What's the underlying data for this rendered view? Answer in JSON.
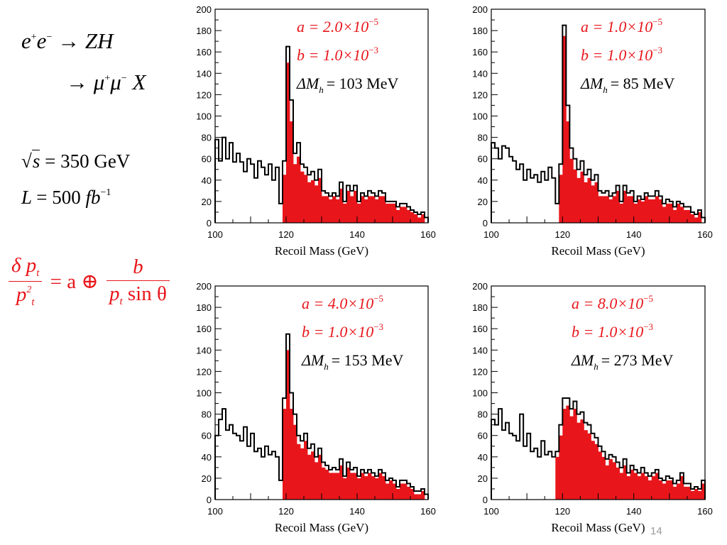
{
  "labels": {
    "process_line1": {
      "e": "e",
      "plus": "+",
      "minus": "−",
      "arrow": "→",
      "zh": "ZH"
    },
    "process_line2": {
      "arrow": "→",
      "mu": "μ",
      "plus": "+",
      "minus": "−",
      "x": "X"
    },
    "energy": {
      "sqrt": "√",
      "s": "s",
      "value": "= 350 GeV"
    },
    "luminosity": {
      "L": "L",
      "value": "= 500 ",
      "unit": "fb",
      "exp": "−1"
    },
    "resolution": {
      "delta": "δ",
      "p": "p",
      "t": "t",
      "sq": "2",
      "eq": "= a ⊕",
      "b": "b",
      "sin": "sin θ"
    },
    "page_number": "14"
  },
  "chart_data": [
    {
      "type": "bar",
      "xlabel": "Recoil Mass (GeV)",
      "xlim": [
        100,
        160
      ],
      "ylim": [
        0,
        200
      ],
      "xticks": [
        100,
        120,
        140,
        160
      ],
      "yticks": [
        0,
        20,
        40,
        60,
        80,
        100,
        120,
        140,
        160,
        180,
        200
      ],
      "annotations": [
        {
          "eq": "a = 2.0×10",
          "exp": "−5",
          "color": "#e8161b"
        },
        {
          "eq": "b = 1.0×10",
          "exp": "−3",
          "color": "#e8161b"
        },
        {
          "sym": "ΔM",
          "sub": "h",
          "eq": "= 103 MeV",
          "color": "#000000"
        }
      ],
      "series": [
        {
          "bin_width": 1,
          "color": "#000000",
          "x_start": 100,
          "values": [
            78,
            58,
            80,
            60,
            75,
            57,
            65,
            57,
            48,
            60,
            55,
            42,
            58,
            52,
            45,
            55,
            40,
            52,
            18,
            58,
            165,
            115,
            65,
            75,
            55,
            52,
            45,
            48,
            40,
            50,
            30,
            28,
            25,
            28,
            25,
            38,
            20,
            35,
            30,
            35,
            20,
            28,
            25,
            30,
            28,
            25,
            30,
            28,
            20,
            20,
            20,
            15,
            18,
            18,
            15,
            12,
            10,
            8,
            10,
            5
          ]
        },
        {
          "bin_width": 1,
          "color": "#e8161b",
          "x_start": 100,
          "values": [
            0,
            0,
            0,
            0,
            0,
            0,
            0,
            0,
            0,
            0,
            0,
            0,
            0,
            0,
            0,
            0,
            0,
            0,
            0,
            45,
            150,
            95,
            55,
            62,
            48,
            45,
            38,
            40,
            35,
            42,
            25,
            25,
            22,
            25,
            22,
            32,
            18,
            30,
            25,
            30,
            18,
            25,
            22,
            25,
            25,
            22,
            25,
            25,
            18,
            18,
            18,
            12,
            15,
            15,
            12,
            10,
            8,
            5,
            8,
            0
          ]
        }
      ]
    },
    {
      "type": "bar",
      "xlabel": "Recoil Mass (GeV)",
      "xlim": [
        100,
        160
      ],
      "ylim": [
        0,
        200
      ],
      "xticks": [
        100,
        120,
        140,
        160
      ],
      "yticks": [
        0,
        20,
        40,
        60,
        80,
        100,
        120,
        140,
        160,
        180,
        200
      ],
      "annotations": [
        {
          "eq": "a = 1.0×10",
          "exp": "−5",
          "color": "#e8161b"
        },
        {
          "eq": "b = 1.0×10",
          "exp": "−3",
          "color": "#e8161b"
        },
        {
          "sym": "ΔM",
          "sub": "h",
          "eq": "= 85 MeV",
          "color": "#000000"
        }
      ],
      "series": [
        {
          "bin_width": 1,
          "color": "#000000",
          "x_start": 100,
          "values": [
            75,
            70,
            60,
            72,
            70,
            62,
            58,
            50,
            55,
            40,
            50,
            42,
            45,
            38,
            48,
            40,
            52,
            42,
            18,
            55,
            185,
            110,
            70,
            60,
            50,
            58,
            45,
            50,
            40,
            45,
            30,
            28,
            30,
            25,
            28,
            35,
            20,
            35,
            28,
            30,
            20,
            25,
            22,
            28,
            25,
            25,
            30,
            25,
            18,
            22,
            20,
            15,
            20,
            18,
            15,
            15,
            10,
            8,
            12,
            5
          ]
        },
        {
          "bin_width": 1,
          "color": "#e8161b",
          "x_start": 100,
          "values": [
            0,
            0,
            0,
            0,
            0,
            0,
            0,
            0,
            0,
            0,
            0,
            0,
            0,
            0,
            0,
            0,
            0,
            0,
            0,
            45,
            175,
            95,
            60,
            50,
            42,
            48,
            38,
            42,
            35,
            38,
            25,
            25,
            25,
            22,
            25,
            30,
            18,
            30,
            25,
            25,
            18,
            22,
            20,
            25,
            22,
            22,
            25,
            22,
            15,
            18,
            18,
            12,
            18,
            15,
            12,
            12,
            8,
            5,
            10,
            0
          ]
        }
      ]
    },
    {
      "type": "bar",
      "xlabel": "Recoil Mass (GeV)",
      "xlim": [
        100,
        160
      ],
      "ylim": [
        0,
        200
      ],
      "xticks": [
        100,
        120,
        140,
        160
      ],
      "yticks": [
        0,
        20,
        40,
        60,
        80,
        100,
        120,
        140,
        160,
        180,
        200
      ],
      "annotations": [
        {
          "eq": "a = 4.0×10",
          "exp": "−5",
          "color": "#e8161b"
        },
        {
          "eq": "b = 1.0×10",
          "exp": "−3",
          "color": "#e8161b"
        },
        {
          "sym": "ΔM",
          "sub": "h",
          "eq": "= 153 MeV",
          "color": "#000000"
        }
      ],
      "series": [
        {
          "bin_width": 1,
          "color": "#000000",
          "x_start": 100,
          "values": [
            60,
            75,
            85,
            65,
            70,
            62,
            60,
            55,
            68,
            50,
            62,
            45,
            48,
            40,
            50,
            42,
            45,
            40,
            18,
            95,
            155,
            100,
            80,
            60,
            55,
            62,
            48,
            52,
            40,
            48,
            35,
            32,
            28,
            30,
            28,
            38,
            22,
            35,
            28,
            30,
            22,
            28,
            25,
            28,
            25,
            22,
            28,
            25,
            18,
            20,
            18,
            12,
            18,
            18,
            15,
            12,
            8,
            8,
            10,
            5
          ]
        },
        {
          "bin_width": 1,
          "color": "#e8161b",
          "x_start": 100,
          "values": [
            0,
            0,
            0,
            0,
            0,
            0,
            0,
            0,
            0,
            0,
            0,
            0,
            0,
            0,
            0,
            0,
            0,
            0,
            0,
            85,
            140,
            85,
            70,
            52,
            48,
            55,
            42,
            45,
            35,
            42,
            30,
            28,
            25,
            25,
            25,
            32,
            20,
            30,
            25,
            25,
            20,
            25,
            22,
            25,
            22,
            20,
            25,
            22,
            15,
            18,
            15,
            10,
            15,
            15,
            12,
            10,
            5,
            5,
            8,
            0
          ]
        }
      ]
    },
    {
      "type": "bar",
      "xlabel": "Recoil Mass (GeV)",
      "xlim": [
        100,
        160
      ],
      "ylim": [
        0,
        200
      ],
      "xticks": [
        100,
        120,
        140,
        160
      ],
      "yticks": [
        0,
        20,
        40,
        60,
        80,
        100,
        120,
        140,
        160,
        180,
        200
      ],
      "annotations": [
        {
          "eq": "a = 8.0×10",
          "exp": "−5",
          "color": "#e8161b"
        },
        {
          "eq": "b = 1.0×10",
          "exp": "−3",
          "color": "#e8161b"
        },
        {
          "sym": "ΔM",
          "sub": "h",
          "eq": "= 273 MeV",
          "color": "#000000"
        }
      ],
      "series": [
        {
          "bin_width": 1,
          "color": "#000000",
          "x_start": 100,
          "values": [
            75,
            70,
            85,
            65,
            72,
            62,
            60,
            55,
            80,
            50,
            62,
            45,
            48,
            40,
            55,
            42,
            45,
            40,
            45,
            70,
            95,
            95,
            85,
            92,
            80,
            82,
            72,
            70,
            62,
            58,
            50,
            45,
            38,
            42,
            40,
            35,
            30,
            38,
            25,
            32,
            28,
            25,
            30,
            25,
            22,
            25,
            28,
            20,
            18,
            22,
            20,
            15,
            18,
            25,
            15,
            15,
            10,
            12,
            10,
            18
          ]
        },
        {
          "bin_width": 1,
          "color": "#e8161b",
          "x_start": 100,
          "values": [
            0,
            0,
            0,
            0,
            0,
            0,
            0,
            0,
            0,
            0,
            0,
            0,
            0,
            0,
            0,
            0,
            0,
            0,
            40,
            60,
            85,
            88,
            78,
            85,
            72,
            75,
            65,
            62,
            55,
            52,
            45,
            40,
            32,
            38,
            35,
            30,
            25,
            32,
            22,
            28,
            25,
            22,
            25,
            22,
            18,
            22,
            25,
            18,
            15,
            18,
            18,
            12,
            15,
            22,
            12,
            12,
            8,
            10,
            8,
            15
          ]
        }
      ]
    }
  ]
}
